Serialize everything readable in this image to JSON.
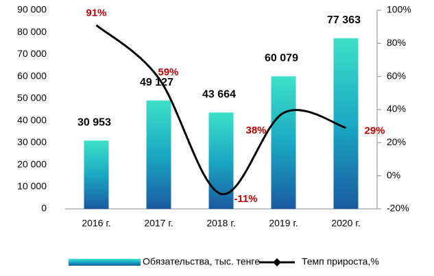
{
  "chart_data": {
    "type": "bar_line",
    "categories": [
      "2016 г.",
      "2017 г.",
      "2018 г.",
      "2019 г.",
      "2020 г."
    ],
    "series": [
      {
        "name": "Обязательства, тыс. тенге",
        "type": "bar",
        "axis": "y",
        "color": "#1fb5c0",
        "values": [
          30953,
          49127,
          43664,
          60079,
          77363
        ],
        "value_labels": [
          "30 953",
          "49 127",
          "43 664",
          "60 079",
          "77 363"
        ]
      },
      {
        "name": "Темп прироста,%",
        "type": "line",
        "axis": "y2",
        "color": "#000000",
        "values": [
          91,
          59,
          -11,
          38,
          29
        ],
        "value_labels": [
          "91%",
          "59%",
          "-11%",
          "38%",
          "29%"
        ]
      }
    ],
    "ylim": [
      0,
      90000
    ],
    "yticks": [
      0,
      {
        "value": 10000,
        "label": "10 000"
      },
      {
        "value": 20000,
        "label": "20 000"
      },
      {
        "value": 30000,
        "label": "30 000"
      },
      {
        "value": 40000,
        "label": "40 000"
      },
      {
        "value": 50000,
        "label": "50 000"
      },
      {
        "value": 60000,
        "label": "60 000"
      },
      {
        "value": 70000,
        "label": "70 000"
      },
      {
        "value": 80000,
        "label": "80 000"
      },
      {
        "value": 90000,
        "label": "90 000"
      }
    ],
    "y2lim": [
      -20,
      100
    ],
    "y2ticks": [
      {
        "value": -20,
        "label": "-20%"
      },
      {
        "value": 0,
        "label": "0%"
      },
      {
        "value": 20,
        "label": "20%"
      },
      {
        "value": 40,
        "label": "40%"
      },
      {
        "value": 60,
        "label": "60%"
      },
      {
        "value": 80,
        "label": "80%"
      },
      {
        "value": 100,
        "label": "100%"
      }
    ],
    "legend": "bottom"
  }
}
